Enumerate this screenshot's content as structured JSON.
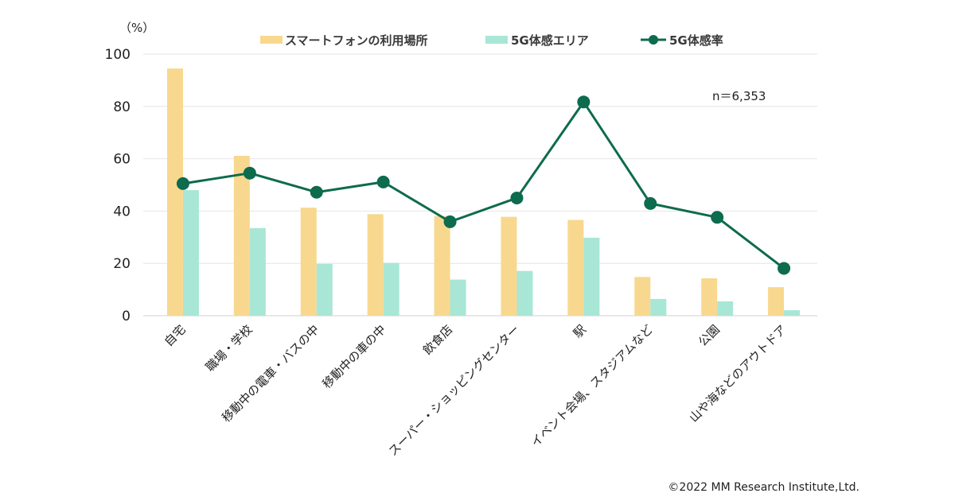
{
  "chart_data": {
    "type": "bar",
    "unit_label": "（%）",
    "note": "n＝6,353",
    "categories": [
      "自宅",
      "職場・学校",
      "移動中の電車・バスの中",
      "移動中の車の中",
      "飲食店",
      "スーパー・ショッピングセンター",
      "駅",
      "イベント会場、スタジアムなど",
      "公園",
      "山や海などのアウトドア"
    ],
    "series": [
      {
        "name": "スマートフォンの利用場所",
        "kind": "bar",
        "color": "#F8D88E",
        "values": [
          94.5,
          61.1,
          41.3,
          38.8,
          38.1,
          37.8,
          36.6,
          14.8,
          14.3,
          10.9
        ]
      },
      {
        "name": "5G体感エリア",
        "kind": "bar",
        "color": "#A8E6D6",
        "values": [
          48.0,
          33.5,
          19.8,
          20.2,
          13.8,
          17.1,
          29.8,
          6.4,
          5.5,
          2.1
        ]
      },
      {
        "name": "5G体感率",
        "kind": "line",
        "color": "#0D6B4E",
        "values": [
          50.5,
          54.5,
          47.2,
          51.1,
          35.9,
          45.0,
          81.7,
          42.9,
          37.6,
          18.1
        ]
      }
    ],
    "ylim": [
      0,
      100
    ],
    "yticks": [
      0,
      20,
      40,
      60,
      80,
      100
    ],
    "grid": true,
    "legend": "top",
    "xlabel": "",
    "ylabel": "（%）"
  },
  "footer": {
    "copyright": "©2022 MM Research Institute,Ltd."
  }
}
